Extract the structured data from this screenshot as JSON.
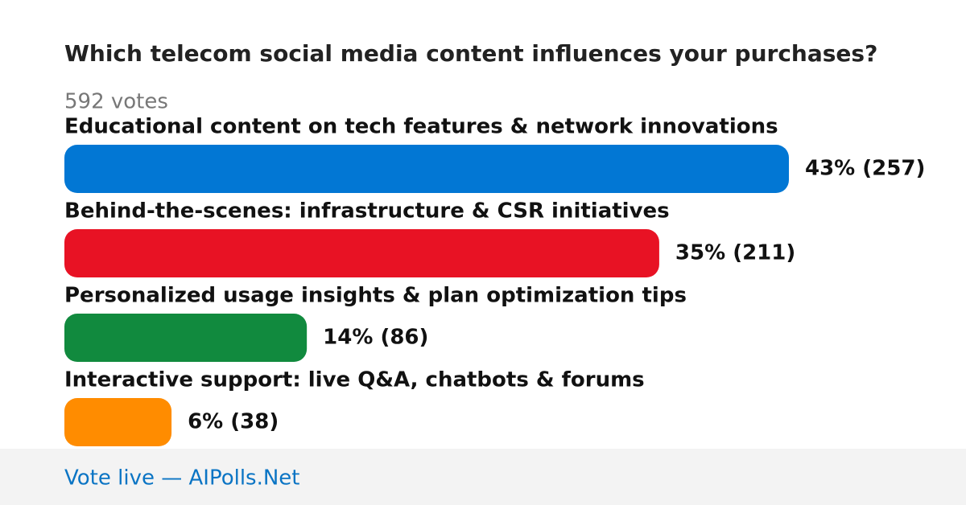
{
  "chart_data": {
    "type": "bar",
    "orientation": "horizontal",
    "title": "Which telecom social media content influences your purchases?",
    "subtitle": "592 votes",
    "categories": [
      "Educational content on tech features & network innovations",
      "Behind-the-scenes: infrastructure & CSR initiatives",
      "Personalized usage insights & plan optimization tips",
      "Interactive support: live Q&A, chatbots & forums"
    ],
    "values": [
      257,
      211,
      86,
      38
    ],
    "value_labels": [
      "43% (257)",
      "35% (211)",
      "14% (86)",
      "6% (38)"
    ],
    "colors": [
      "#0277d4",
      "#e81224",
      "#118a3e",
      "#ff8c00"
    ],
    "footer": "Vote live — AIPolls.Net"
  }
}
